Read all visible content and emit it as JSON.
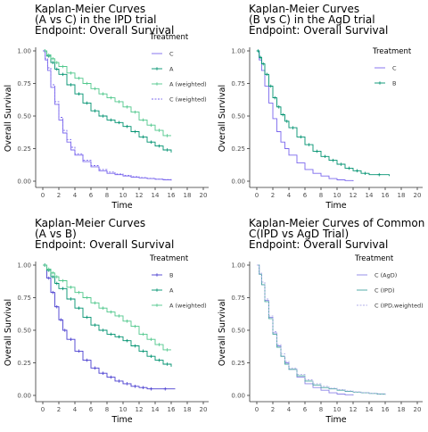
{
  "colors": {
    "C": "#7b68ee",
    "A": "#009270",
    "A_weighted": "#50c88c",
    "B": "#4a3fd0",
    "C_AgD": "#8c84e6",
    "C_IPD": "#45a5a0",
    "C_IPD_weighted": "#b0aee8",
    "axis": "#333333",
    "text": "#000000"
  },
  "chart_data": [
    {
      "type": "line",
      "title_lines": [
        "Kaplan-Meier Curves",
        "(A vs C) in the IPD trial",
        "Endpoint: Overall Survival"
      ],
      "xlabel": "Time",
      "ylabel": "Overall Survival",
      "xlim": [
        0,
        20
      ],
      "ylim": [
        0,
        1
      ],
      "xticks": [
        0,
        2,
        4,
        6,
        8,
        10,
        12,
        14,
        16,
        18,
        20
      ],
      "yticks": [
        0,
        0.25,
        0.5,
        0.75,
        1
      ],
      "ytick_labels": [
        "0.00",
        "0.25",
        "0.50",
        "0.75",
        "1.00"
      ],
      "legend_title": "Treatment",
      "series": [
        {
          "name": "C",
          "color_key": "C",
          "censor": false,
          "dash": false,
          "x": [
            0,
            0.3,
            0.6,
            1.0,
            1.5,
            2.0,
            2.5,
            3.0,
            3.5,
            4.0,
            5.0,
            6.0,
            7.0,
            8.0,
            9.0,
            10.0,
            11.0,
            12.0,
            13.0,
            14.0,
            15.0,
            16.0
          ],
          "y": [
            1.0,
            0.93,
            0.85,
            0.72,
            0.59,
            0.47,
            0.37,
            0.3,
            0.24,
            0.2,
            0.15,
            0.11,
            0.08,
            0.06,
            0.05,
            0.04,
            0.03,
            0.025,
            0.02,
            0.015,
            0.01,
            0.005
          ]
        },
        {
          "name": "A",
          "color_key": "A",
          "censor": true,
          "dash": false,
          "x": [
            0,
            0.5,
            1.0,
            1.5,
            2.0,
            3.0,
            4.0,
            5.0,
            6.0,
            7.0,
            8.0,
            9.0,
            10.0,
            11.0,
            12.0,
            13.0,
            14.0,
            15.0,
            16.0
          ],
          "y": [
            1.0,
            0.96,
            0.91,
            0.86,
            0.82,
            0.74,
            0.67,
            0.6,
            0.54,
            0.5,
            0.47,
            0.45,
            0.42,
            0.38,
            0.34,
            0.3,
            0.27,
            0.24,
            0.22
          ]
        },
        {
          "name": "A (weighted)",
          "color_key": "A_weighted",
          "censor": true,
          "dash": false,
          "x": [
            0,
            0.5,
            1.0,
            1.5,
            2.0,
            3.0,
            4.0,
            5.0,
            6.0,
            7.0,
            8.0,
            9.0,
            10.0,
            11.0,
            12.0,
            13.0,
            14.0,
            15.0,
            16.0
          ],
          "y": [
            1.0,
            0.97,
            0.94,
            0.91,
            0.88,
            0.83,
            0.79,
            0.75,
            0.71,
            0.67,
            0.64,
            0.61,
            0.57,
            0.53,
            0.47,
            0.43,
            0.39,
            0.35,
            0.35
          ]
        },
        {
          "name": "C (weighted)",
          "color_key": "C",
          "censor": false,
          "dash": true,
          "x": [
            0,
            0.3,
            0.6,
            1.0,
            1.5,
            2.0,
            2.5,
            3.0,
            3.5,
            4.0,
            5.0,
            6.0,
            7.0,
            8.0,
            9.0,
            10.0,
            11.0,
            12.0,
            13.0,
            14.0,
            15.0,
            16.0
          ],
          "y": [
            1.0,
            0.94,
            0.87,
            0.74,
            0.61,
            0.49,
            0.39,
            0.32,
            0.26,
            0.21,
            0.16,
            0.12,
            0.09,
            0.07,
            0.055,
            0.045,
            0.035,
            0.028,
            0.022,
            0.016,
            0.012,
            0.008
          ]
        }
      ]
    },
    {
      "type": "line",
      "title_lines": [
        "Kaplan-Meier Curves",
        "(B vs C) in the AgD trial",
        "Endpoint: Overall Survival"
      ],
      "xlabel": "Time",
      "ylabel": "Overall Survival",
      "xlim": [
        0,
        20
      ],
      "ylim": [
        0,
        1
      ],
      "xticks": [
        0,
        2,
        4,
        6,
        8,
        10,
        12,
        14,
        16,
        18,
        20
      ],
      "yticks": [
        0,
        0.25,
        0.5,
        0.75,
        1
      ],
      "ytick_labels": [
        "0.00",
        "0.25",
        "0.50",
        "0.75",
        "1.00"
      ],
      "legend_title": "Treatment",
      "series": [
        {
          "name": "C",
          "color_key": "C",
          "censor": false,
          "dash": false,
          "x": [
            0,
            0.3,
            0.6,
            1.0,
            1.5,
            2.0,
            2.5,
            3.0,
            3.5,
            4.0,
            5.0,
            6.0,
            7.0,
            8.0,
            9.0,
            10.0,
            11.0,
            12.0
          ],
          "y": [
            1.0,
            0.93,
            0.85,
            0.73,
            0.6,
            0.48,
            0.38,
            0.3,
            0.25,
            0.2,
            0.14,
            0.09,
            0.06,
            0.04,
            0.02,
            0.01,
            0.005,
            0.0
          ]
        },
        {
          "name": "B",
          "color_key": "A",
          "censor": true,
          "dash": false,
          "x": [
            0,
            0.3,
            0.6,
            1.0,
            1.5,
            2.0,
            2.5,
            3.0,
            3.5,
            4.0,
            5.0,
            6.0,
            7.0,
            8.0,
            9.0,
            10.0,
            11.0,
            12.0,
            13.0,
            14.0,
            16.5
          ],
          "y": [
            1.0,
            0.95,
            0.9,
            0.82,
            0.73,
            0.64,
            0.57,
            0.51,
            0.46,
            0.41,
            0.34,
            0.28,
            0.23,
            0.19,
            0.16,
            0.13,
            0.1,
            0.08,
            0.06,
            0.05,
            0.04
          ]
        }
      ]
    },
    {
      "type": "line",
      "title_lines": [
        "Kaplan-Meier Curves",
        "(A vs B)",
        "Endpoint: Overall Survival"
      ],
      "xlabel": "Time",
      "ylabel": "Overall Survival",
      "xlim": [
        0,
        20
      ],
      "ylim": [
        0,
        1
      ],
      "xticks": [
        0,
        2,
        4,
        6,
        8,
        10,
        12,
        14,
        16,
        18,
        20
      ],
      "yticks": [
        0,
        0.25,
        0.5,
        0.75,
        1
      ],
      "ytick_labels": [
        "0.00",
        "0.25",
        "0.50",
        "0.75",
        "1.00"
      ],
      "legend_title": "Treatment",
      "series": [
        {
          "name": "B",
          "color_key": "B",
          "censor": true,
          "dash": false,
          "x": [
            0,
            0.5,
            1.0,
            1.5,
            2.0,
            2.5,
            3.0,
            4.0,
            5.0,
            6.0,
            7.0,
            8.0,
            9.0,
            10.0,
            11.0,
            12.0,
            13.0,
            14.0,
            16.5
          ],
          "y": [
            1.0,
            0.9,
            0.79,
            0.68,
            0.58,
            0.5,
            0.43,
            0.34,
            0.27,
            0.21,
            0.17,
            0.14,
            0.11,
            0.09,
            0.07,
            0.06,
            0.05,
            0.05,
            0.05
          ]
        },
        {
          "name": "A",
          "color_key": "A",
          "censor": true,
          "dash": false,
          "x": [
            0,
            0.5,
            1.0,
            1.5,
            2.0,
            3.0,
            4.0,
            5.0,
            6.0,
            7.0,
            8.0,
            9.0,
            10.0,
            11.0,
            12.0,
            13.0,
            14.0,
            15.0,
            16.0
          ],
          "y": [
            1.0,
            0.96,
            0.91,
            0.86,
            0.82,
            0.74,
            0.67,
            0.6,
            0.54,
            0.5,
            0.47,
            0.45,
            0.42,
            0.38,
            0.34,
            0.3,
            0.27,
            0.24,
            0.22
          ]
        },
        {
          "name": "A (weighted)",
          "color_key": "A_weighted",
          "censor": true,
          "dash": false,
          "x": [
            0,
            0.5,
            1.0,
            1.5,
            2.0,
            3.0,
            4.0,
            5.0,
            6.0,
            7.0,
            8.0,
            9.0,
            10.0,
            11.0,
            12.0,
            13.0,
            14.0,
            15.0,
            16.0
          ],
          "y": [
            1.0,
            0.97,
            0.94,
            0.91,
            0.88,
            0.83,
            0.79,
            0.75,
            0.71,
            0.67,
            0.64,
            0.61,
            0.57,
            0.53,
            0.47,
            0.43,
            0.39,
            0.35,
            0.35
          ]
        }
      ]
    },
    {
      "type": "line",
      "title_lines": [
        "Kaplan-Meier Curves of Common",
        "C(IPD vs AgD Trial)",
        "Endpoint: Overall Survival"
      ],
      "xlabel": "Time",
      "ylabel": "Overall Survival",
      "xlim": [
        0,
        20
      ],
      "ylim": [
        0,
        1
      ],
      "xticks": [
        0,
        2,
        4,
        6,
        8,
        10,
        12,
        14,
        16,
        18,
        20
      ],
      "yticks": [
        0,
        0.25,
        0.5,
        0.75,
        1
      ],
      "ytick_labels": [
        "0.00",
        "0.25",
        "0.50",
        "0.75",
        "1.00"
      ],
      "legend_title": "Treatment",
      "series": [
        {
          "name": "C (AgD)",
          "color_key": "C_AgD",
          "censor": false,
          "dash": false,
          "x": [
            0,
            0.3,
            0.6,
            1.0,
            1.5,
            2.0,
            2.5,
            3.0,
            3.5,
            4.0,
            5.0,
            6.0,
            7.0,
            8.0,
            9.0,
            10.0,
            11.0,
            12.0
          ],
          "y": [
            1.0,
            0.93,
            0.85,
            0.73,
            0.6,
            0.48,
            0.38,
            0.3,
            0.25,
            0.2,
            0.14,
            0.09,
            0.06,
            0.04,
            0.02,
            0.01,
            0.005,
            0.0
          ]
        },
        {
          "name": "C (IPD)",
          "color_key": "C_IPD",
          "censor": false,
          "dash": false,
          "x": [
            0,
            0.3,
            0.6,
            1.0,
            1.5,
            2.0,
            2.5,
            3.0,
            3.5,
            4.0,
            5.0,
            6.0,
            7.0,
            8.0,
            9.0,
            10.0,
            11.0,
            12.0,
            13.0,
            14.0,
            15.0,
            16.0
          ],
          "y": [
            1.0,
            0.93,
            0.85,
            0.72,
            0.59,
            0.47,
            0.37,
            0.3,
            0.24,
            0.2,
            0.15,
            0.11,
            0.08,
            0.06,
            0.05,
            0.04,
            0.03,
            0.025,
            0.02,
            0.015,
            0.01,
            0.005
          ]
        },
        {
          "name": "C (IPD,weighted)",
          "color_key": "C_IPD_weighted",
          "censor": false,
          "dash": true,
          "x": [
            0,
            0.3,
            0.6,
            1.0,
            1.5,
            2.0,
            2.5,
            3.0,
            3.5,
            4.0,
            5.0,
            6.0,
            7.0,
            8.0,
            9.0,
            10.0,
            11.0,
            12.0,
            13.0,
            14.0,
            15.0,
            16.0
          ],
          "y": [
            1.0,
            0.94,
            0.87,
            0.74,
            0.61,
            0.49,
            0.39,
            0.32,
            0.26,
            0.21,
            0.16,
            0.12,
            0.09,
            0.07,
            0.055,
            0.045,
            0.035,
            0.028,
            0.022,
            0.016,
            0.012,
            0.008
          ]
        }
      ]
    }
  ]
}
